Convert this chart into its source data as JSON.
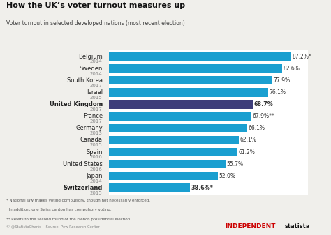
{
  "title": "How the UK’s voter turnout measures up",
  "subtitle": "Voter turnout in selected developed nations (most recent election)",
  "country_names": [
    "Belgium",
    "Sweden",
    "South Korea",
    "Israel",
    "United Kingdom",
    "France",
    "Germany",
    "Canada",
    "Spain",
    "United States",
    "Japan",
    "Switzerland"
  ],
  "years": [
    "2014",
    "2014",
    "2017",
    "2015",
    "2017",
    "2017",
    "2013",
    "2015",
    "2016",
    "2016",
    "2014",
    "2015"
  ],
  "values": [
    87.2,
    82.6,
    77.9,
    76.1,
    68.7,
    67.9,
    66.1,
    62.1,
    61.2,
    55.7,
    52.0,
    38.6
  ],
  "value_labels": [
    "87.2%*",
    "82.6%",
    "77.9%",
    "76.1%",
    "68.7%",
    "67.9%**",
    "66.1%",
    "62.1%",
    "61.2%",
    "55.7%",
    "52.0%",
    "38.6%*"
  ],
  "bar_colors": [
    "#1a9fd0",
    "#1a9fd0",
    "#1a9fd0",
    "#1a9fd0",
    "#3d3d7a",
    "#1a9fd0",
    "#1a9fd0",
    "#1a9fd0",
    "#1a9fd0",
    "#1a9fd0",
    "#1a9fd0",
    "#1a9fd0"
  ],
  "bold_indices": [
    4,
    11
  ],
  "uk_value_bold": true,
  "footnote1": "* National law makes voting compulsory, though not necessarily enforced.",
  "footnote2": "  In addition, one Swiss canton has compulsory voting.",
  "footnote3": "** Refers to the second round of the French presidential election.",
  "bg_color": "#f0efeb",
  "bar_bg_color": "#ffffff",
  "xlim_max": 95
}
